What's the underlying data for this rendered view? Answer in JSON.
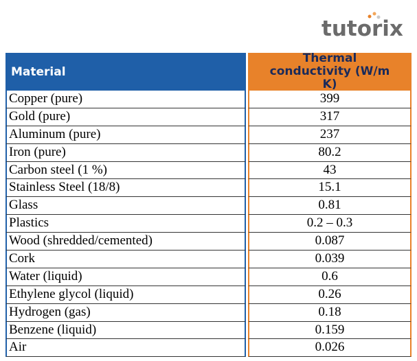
{
  "logo": "tutorix",
  "table": {
    "header": [
      "Material",
      "Thermal conductivity (W/m K)"
    ],
    "rows": [
      [
        "Copper (pure)",
        "399"
      ],
      [
        "Gold (pure)",
        "317"
      ],
      [
        "Aluminum (pure)",
        "237"
      ],
      [
        "Iron (pure)",
        "80.2"
      ],
      [
        "Carbon steel (1 %)",
        "43"
      ],
      [
        "Stainless Steel (18/8)",
        "15.1"
      ],
      [
        "Glass",
        "0.81"
      ],
      [
        "Plastics",
        "0.2 – 0.3"
      ],
      [
        "Wood (shredded/cemented)",
        "0.087"
      ],
      [
        "Cork",
        "0.039"
      ],
      [
        "Water (liquid)",
        "0.6"
      ],
      [
        "Ethylene glycol (liquid)",
        "0.26"
      ],
      [
        "Hydrogen (gas)",
        "0.18"
      ],
      [
        "Benzene (liquid)",
        "0.159"
      ],
      [
        "Air",
        "0.026"
      ]
    ]
  }
}
